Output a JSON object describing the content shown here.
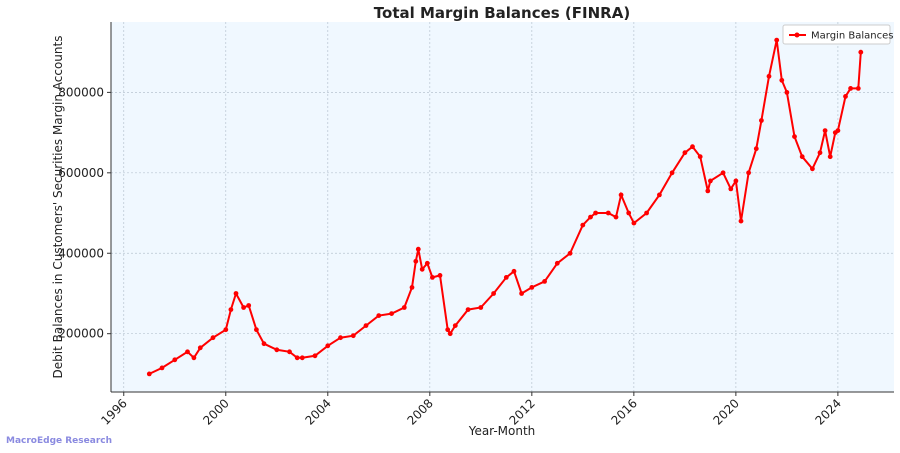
{
  "chart_data": {
    "type": "line",
    "title": "Total Margin Balances (FINRA)",
    "xlabel": "Year-Month",
    "ylabel": "Debit Balances in Customers' Securities Margin Accounts",
    "x_ticks": [
      "1996",
      "2000",
      "2004",
      "2008",
      "2012",
      "2016",
      "2020",
      "2024"
    ],
    "y_ticks": [
      "200000",
      "400000",
      "600000",
      "800000"
    ],
    "xlim": [
      1995.5,
      2026.2
    ],
    "ylim": [
      55000,
      975000
    ],
    "grid": true,
    "legend_position": "top-right",
    "series": [
      {
        "name": "Margin Balances",
        "color": "#ff0000",
        "x": [
          1997.0,
          1997.5,
          1998.0,
          1998.5,
          1998.75,
          1999.0,
          1999.5,
          2000.0,
          2000.2,
          2000.4,
          2000.7,
          2000.9,
          2001.2,
          2001.5,
          2002.0,
          2002.5,
          2002.8,
          2003.0,
          2003.5,
          2004.0,
          2004.5,
          2005.0,
          2005.5,
          2006.0,
          2006.5,
          2007.0,
          2007.3,
          2007.45,
          2007.55,
          2007.7,
          2007.9,
          2008.1,
          2008.4,
          2008.7,
          2008.8,
          2009.0,
          2009.5,
          2010.0,
          2010.5,
          2011.0,
          2011.3,
          2011.6,
          2012.0,
          2012.5,
          2013.0,
          2013.5,
          2014.0,
          2014.3,
          2014.5,
          2015.0,
          2015.3,
          2015.5,
          2015.8,
          2016.0,
          2016.5,
          2017.0,
          2017.5,
          2018.0,
          2018.3,
          2018.6,
          2018.9,
          2019.0,
          2019.5,
          2019.8,
          2020.0,
          2020.2,
          2020.5,
          2020.8,
          2021.0,
          2021.3,
          2021.6,
          2021.8,
          2022.0,
          2022.3,
          2022.6,
          2023.0,
          2023.3,
          2023.5,
          2023.7,
          2023.9,
          2024.0,
          2024.3,
          2024.5,
          2024.8,
          2024.9
        ],
        "y": [
          100000,
          115000,
          135000,
          155000,
          140000,
          165000,
          190000,
          210000,
          260000,
          300000,
          265000,
          270000,
          210000,
          175000,
          160000,
          155000,
          140000,
          140000,
          145000,
          170000,
          190000,
          195000,
          220000,
          245000,
          250000,
          265000,
          315000,
          380000,
          410000,
          360000,
          375000,
          340000,
          345000,
          210000,
          200000,
          220000,
          260000,
          265000,
          300000,
          340000,
          355000,
          300000,
          315000,
          330000,
          375000,
          400000,
          470000,
          490000,
          500000,
          500000,
          490000,
          545000,
          500000,
          475000,
          500000,
          545000,
          600000,
          650000,
          665000,
          640000,
          555000,
          580000,
          600000,
          560000,
          580000,
          480000,
          600000,
          660000,
          730000,
          840000,
          930000,
          830000,
          800000,
          690000,
          640000,
          610000,
          650000,
          705000,
          640000,
          700000,
          705000,
          790000,
          810000,
          810000,
          900000
        ]
      }
    ]
  },
  "watermark": "MacroEdge Research"
}
